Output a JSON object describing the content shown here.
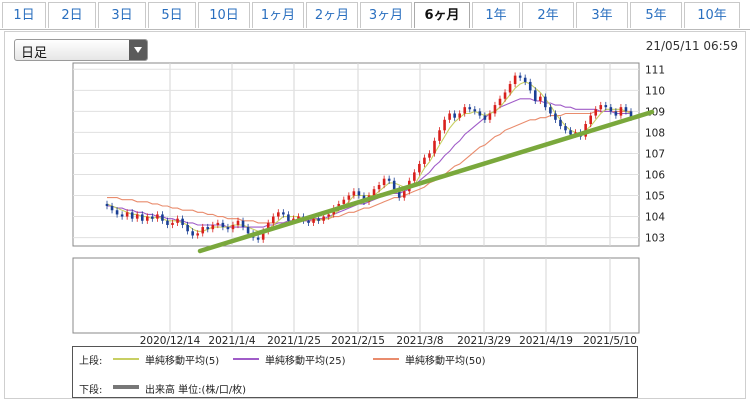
{
  "tabs": [
    {
      "label": "1日"
    },
    {
      "label": "2日"
    },
    {
      "label": "3日"
    },
    {
      "label": "5日"
    },
    {
      "label": "10日"
    },
    {
      "label": "1ヶ月"
    },
    {
      "label": "2ヶ月"
    },
    {
      "label": "3ヶ月"
    },
    {
      "label": "6ヶ月",
      "active": true
    },
    {
      "label": "1年"
    },
    {
      "label": "2年"
    },
    {
      "label": "3年"
    },
    {
      "label": "5年"
    },
    {
      "label": "10年"
    }
  ],
  "selector": {
    "value": "日足"
  },
  "timestamp": "21/05/11 06:59",
  "legend": {
    "upper_label": "上段:",
    "lower_label": "下段:",
    "ma5": "単純移動平均(5)",
    "ma25": "単純移動平均(25)",
    "ma50": "単純移動平均(50)",
    "volume": "出来高 単位:(株/口/枚)"
  },
  "colors": {
    "up": "#d8201c",
    "down": "#1a3f94",
    "ma5": "#c8cf63",
    "ma25": "#a05cc8",
    "ma50": "#e98c6d",
    "trend": "#7aa83c",
    "volume": "#777777"
  },
  "chart_data": {
    "type": "candlestick",
    "x_tick_labels": [
      "2020/12/14",
      "2021/1/4",
      "2021/1/25",
      "2021/2/15",
      "2021/3/8",
      "2021/3/29",
      "2021/4/19",
      "2021/5/10"
    ],
    "y_ticks": [
      103,
      104,
      105,
      106,
      107,
      108,
      109,
      110,
      111
    ],
    "ylim": [
      102.6,
      111.3
    ],
    "close": [
      104.5,
      104.3,
      104.1,
      104.0,
      104.2,
      103.9,
      104.1,
      103.8,
      104.0,
      103.9,
      104.1,
      103.8,
      103.6,
      103.7,
      103.9,
      103.6,
      103.3,
      103.1,
      103.2,
      103.5,
      103.4,
      103.6,
      103.7,
      103.5,
      103.4,
      103.6,
      103.8,
      103.5,
      103.2,
      103.0,
      102.9,
      103.3,
      103.7,
      104.0,
      104.2,
      104.1,
      103.8,
      103.9,
      104.0,
      103.8,
      103.7,
      103.9,
      103.8,
      104.0,
      104.1,
      104.4,
      104.6,
      104.8,
      105.0,
      105.2,
      105.0,
      104.7,
      105.0,
      105.3,
      105.5,
      105.8,
      105.7,
      105.3,
      104.9,
      105.2,
      105.7,
      106.1,
      106.5,
      106.8,
      107.0,
      107.6,
      108.1,
      108.6,
      108.9,
      108.7,
      108.9,
      109.2,
      109.1,
      109.0,
      108.8,
      108.6,
      108.9,
      109.3,
      109.6,
      109.9,
      110.3,
      110.7,
      110.6,
      110.4,
      110.0,
      109.5,
      109.7,
      109.2,
      108.9,
      108.6,
      108.3,
      108.1,
      107.9,
      108.0,
      107.8,
      108.4,
      108.8,
      109.1,
      109.3,
      109.2,
      109.0,
      108.8,
      109.2,
      109.0,
      108.7
    ],
    "ma5": [
      104.6,
      104.5,
      104.4,
      104.3,
      104.2,
      104.1,
      104.1,
      104.0,
      104.0,
      103.9,
      104.0,
      103.9,
      103.8,
      103.8,
      103.8,
      103.7,
      103.6,
      103.4,
      103.3,
      103.3,
      103.4,
      103.5,
      103.5,
      103.5,
      103.5,
      103.6,
      103.6,
      103.6,
      103.5,
      103.4,
      103.3,
      103.3,
      103.4,
      103.6,
      103.8,
      104.0,
      104.0,
      104.0,
      104.0,
      103.9,
      103.9,
      103.9,
      103.8,
      103.9,
      103.9,
      104.1,
      104.3,
      104.5,
      104.7,
      105.0,
      105.0,
      105.0,
      105.0,
      105.0,
      105.2,
      105.4,
      105.6,
      105.6,
      105.5,
      105.4,
      105.4,
      105.5,
      105.9,
      106.3,
      106.6,
      107.0,
      107.4,
      107.8,
      108.2,
      108.5,
      108.7,
      108.9,
      108.9,
      109.0,
      108.9,
      108.8,
      108.9,
      109.0,
      109.2,
      109.5,
      109.8,
      110.1,
      110.3,
      110.4,
      110.3,
      110.1,
      109.9,
      109.6,
      109.3,
      108.9,
      108.6,
      108.3,
      108.1,
      108.0,
      107.9,
      108.1,
      108.3,
      108.6,
      108.9,
      109.1,
      109.1,
      109.1,
      109.1,
      109.0,
      108.9
    ],
    "ma25": [
      104.5,
      104.5,
      104.4,
      104.4,
      104.3,
      104.3,
      104.2,
      104.2,
      104.1,
      104.1,
      104.0,
      104.0,
      103.9,
      103.9,
      103.8,
      103.8,
      103.7,
      103.7,
      103.6,
      103.6,
      103.6,
      103.6,
      103.6,
      103.6,
      103.5,
      103.5,
      103.5,
      103.5,
      103.5,
      103.5,
      103.5,
      103.5,
      103.6,
      103.6,
      103.7,
      103.7,
      103.8,
      103.8,
      103.8,
      103.8,
      103.8,
      103.9,
      103.9,
      103.9,
      104.0,
      104.1,
      104.2,
      104.3,
      104.4,
      104.5,
      104.6,
      104.6,
      104.7,
      104.8,
      104.9,
      105.0,
      105.1,
      105.1,
      105.1,
      105.2,
      105.3,
      105.5,
      105.7,
      105.9,
      106.1,
      106.4,
      106.6,
      106.9,
      107.1,
      107.4,
      107.6,
      107.9,
      108.1,
      108.3,
      108.5,
      108.7,
      108.9,
      109.0,
      109.2,
      109.3,
      109.4,
      109.5,
      109.6,
      109.6,
      109.6,
      109.5,
      109.5,
      109.4,
      109.4,
      109.3,
      109.3,
      109.2,
      109.2,
      109.1,
      109.1,
      109.1,
      109.1,
      109.1,
      109.0,
      109.0,
      109.0,
      108.9,
      108.9,
      108.9,
      108.9
    ],
    "ma50": [
      104.9,
      104.9,
      104.9,
      104.8,
      104.8,
      104.8,
      104.7,
      104.7,
      104.7,
      104.6,
      104.6,
      104.5,
      104.5,
      104.4,
      104.4,
      104.3,
      104.3,
      104.3,
      104.2,
      104.2,
      104.1,
      104.1,
      104.0,
      104.0,
      103.9,
      103.9,
      103.9,
      103.8,
      103.8,
      103.8,
      103.7,
      103.7,
      103.7,
      103.7,
      103.7,
      103.7,
      103.7,
      103.7,
      103.8,
      103.8,
      103.8,
      103.8,
      103.9,
      103.9,
      103.9,
      104.0,
      104.0,
      104.1,
      104.2,
      104.2,
      104.3,
      104.4,
      104.4,
      104.5,
      104.6,
      104.7,
      104.8,
      104.9,
      104.9,
      105.0,
      105.1,
      105.2,
      105.3,
      105.4,
      105.6,
      105.7,
      105.9,
      106.0,
      106.2,
      106.4,
      106.5,
      106.7,
      106.9,
      107.1,
      107.3,
      107.4,
      107.6,
      107.8,
      107.9,
      108.1,
      108.2,
      108.3,
      108.4,
      108.5,
      108.6,
      108.6,
      108.7,
      108.7,
      108.8,
      108.8,
      108.8,
      108.9,
      108.9,
      108.9,
      108.9,
      108.9,
      108.9,
      109.0,
      109.0,
      109.0,
      109.0,
      109.0,
      109.0,
      109.0,
      109.0
    ]
  }
}
